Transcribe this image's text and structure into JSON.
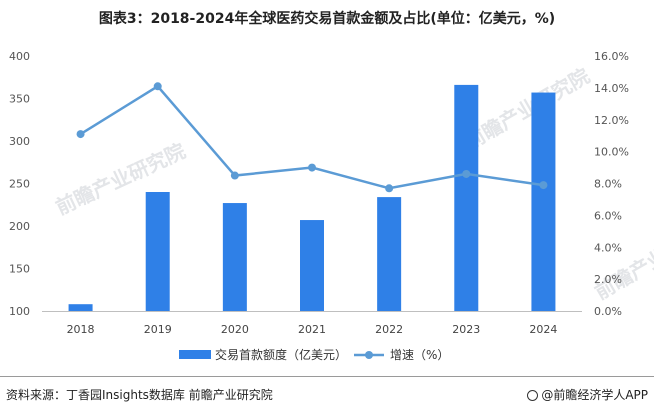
{
  "title": "图表3：2018-2024年全球医药交易首款金额及占比(单位：亿美元，%)",
  "footer": {
    "source": "资料来源：丁香园Insights数据库 前瞻产业研究院",
    "brand": "@前瞻经济学人APP"
  },
  "watermark": "前瞻产业研究院",
  "colors": {
    "bar": "#2f80e7",
    "line": "#5b9bd5"
  },
  "chart_data": {
    "type": "bar",
    "categories": [
      "2018",
      "2019",
      "2020",
      "2021",
      "2022",
      "2023",
      "2024"
    ],
    "series": [
      {
        "name": "交易首款额度（亿美元）",
        "type": "bar",
        "axis": "left",
        "values": [
          108,
          240,
          227,
          207,
          234,
          366,
          357
        ]
      },
      {
        "name": "增速（%）",
        "type": "line",
        "axis": "right",
        "values": [
          11.1,
          14.1,
          8.5,
          9.0,
          7.7,
          8.6,
          7.9
        ]
      }
    ],
    "y_left": {
      "min": 100,
      "max": 400,
      "ticks": [
        "100",
        "150",
        "200",
        "250",
        "300",
        "350",
        "400"
      ]
    },
    "y_right": {
      "min": 0,
      "max": 16,
      "ticks": [
        "0.0%",
        "2.0%",
        "4.0%",
        "6.0%",
        "8.0%",
        "10.0%",
        "12.0%",
        "14.0%",
        "16.0%"
      ]
    },
    "grid": false,
    "legend_position": "bottom"
  }
}
